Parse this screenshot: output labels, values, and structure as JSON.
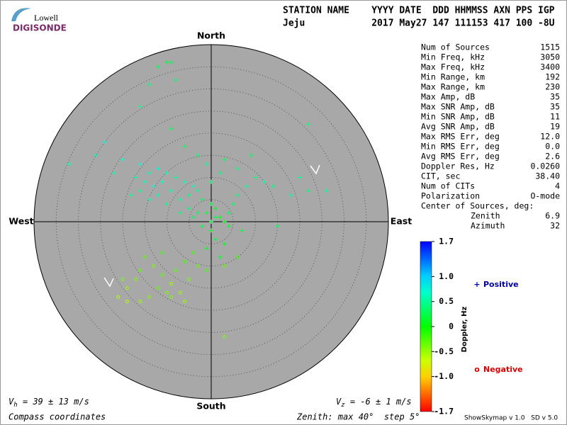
{
  "header": {
    "logo_top": "Lowell",
    "logo_bottom": "DIGISONDE",
    "labels": "STATION NAME    YYYY DATE  DDD HHMMSS AXN PPS IGP",
    "values": "Jeju            2017 May27 147 111153 417 100 -8U"
  },
  "chart_data": {
    "type": "skymap",
    "directions": {
      "north": "North",
      "south": "South",
      "east": "East",
      "west": "West"
    },
    "rlim": [
      0,
      40
    ],
    "rticks": [
      5,
      10,
      15,
      20,
      25,
      30,
      35
    ],
    "series": [
      {
        "name": "Positive",
        "marker": "+",
        "label_color": "#0000aa",
        "x": [
          -3,
          -2,
          0,
          1,
          -4,
          -6,
          -8,
          -10,
          -12,
          -14,
          -16,
          -5,
          -7,
          -1,
          2,
          3,
          4,
          5,
          6,
          8,
          10,
          12,
          -9,
          -11,
          -13,
          -15,
          -17,
          -20,
          -24,
          -26,
          -22,
          -18,
          0,
          2,
          -1,
          -3,
          -6,
          -9,
          -8,
          -9,
          -10,
          -12,
          -14,
          -16,
          3,
          6,
          9,
          14,
          18,
          20,
          22,
          26,
          -4,
          -2,
          0,
          1,
          -1,
          2,
          0,
          1,
          4,
          7,
          3,
          -3,
          -5,
          -7,
          -10,
          -12,
          -14,
          -16,
          15,
          22,
          -32
        ],
        "y": [
          7,
          5,
          4,
          3,
          8,
          9,
          10,
          11,
          12,
          11,
          13,
          6,
          5,
          2,
          1,
          0,
          2,
          4,
          6,
          8,
          10,
          9,
          7,
          9,
          8,
          9,
          10,
          14,
          18,
          15,
          11,
          6,
          9,
          11,
          13,
          15,
          17,
          21,
          32,
          36,
          36,
          35,
          31,
          26,
          14,
          12,
          15,
          8,
          6,
          10,
          7,
          7,
          1,
          -1,
          -2,
          -4,
          -6,
          -8,
          0,
          1,
          -1,
          -2,
          -5,
          2,
          3,
          2,
          4,
          6,
          5,
          7,
          -1,
          22,
          13
        ],
        "doppler": [
          0.5,
          0.3,
          0.2,
          0.1,
          0.6,
          0.6,
          0.5,
          0.6,
          0.7,
          0.6,
          0.7,
          0.4,
          0.5,
          0.2,
          0.1,
          0.1,
          0.3,
          0.3,
          0.4,
          0.5,
          0.4,
          0.5,
          0.6,
          0.6,
          0.7,
          0.6,
          0.6,
          0.7,
          0.7,
          0.6,
          0.6,
          0.5,
          0.4,
          0.4,
          0.5,
          0.4,
          0.3,
          0.3,
          0.4,
          0.3,
          0.2,
          0.3,
          0.4,
          0.5,
          0.3,
          0.4,
          0.3,
          0.4,
          0.5,
          0.5,
          0.4,
          0.5,
          0.3,
          0.2,
          0.1,
          0.2,
          0.1,
          0.1,
          0.2,
          0.2,
          0.1,
          0.2,
          0.1,
          0.3,
          0.4,
          0.4,
          0.5,
          0.6,
          0.6,
          0.5,
          0.3,
          0.4,
          0.6
        ]
      },
      {
        "name": "Negative",
        "marker": "o",
        "label_color": "#dd0000",
        "x": [
          -15,
          -13,
          -11,
          -9,
          -8,
          -6,
          -5,
          -7,
          -10,
          -12,
          -17,
          -19,
          -21,
          -20,
          -16,
          -14,
          -4,
          -3,
          -1,
          3,
          6,
          -6,
          -9,
          -16,
          -19,
          -11,
          3
        ],
        "y": [
          -8,
          -10,
          -12,
          -14,
          -11,
          -9,
          -13,
          -16,
          -16,
          -15,
          -13,
          -15,
          -17,
          -13,
          -18,
          -17,
          -7,
          -10,
          -11,
          -10,
          -8,
          -18,
          -17,
          -11,
          -18,
          -7,
          -26
        ],
        "doppler": [
          -0.3,
          -0.4,
          -0.3,
          -0.5,
          -0.3,
          -0.2,
          -0.4,
          -0.5,
          -0.4,
          -0.3,
          -0.4,
          -0.5,
          -0.6,
          -0.4,
          -0.5,
          -0.4,
          -0.2,
          -0.3,
          -0.2,
          -0.3,
          -0.2,
          -0.5,
          -0.4,
          -0.3,
          -0.6,
          -0.2,
          -0.4
        ]
      }
    ],
    "colorbar": {
      "label": "Doppler, Hz",
      "clim": [
        -1.7,
        1.7
      ],
      "ticks": [
        {
          "value": 1.7,
          "label": "1.7"
        },
        {
          "value": 1,
          "label": "1.0"
        },
        {
          "value": 0.5,
          "label": "0.5"
        },
        0,
        {
          "value": -0.5,
          "label": "-0.5"
        },
        {
          "value": -1,
          "label": "-1.0"
        },
        {
          "value": -1.7,
          "label": "-1.7"
        }
      ]
    }
  },
  "stats": {
    "rows": [
      [
        "Num of Sources",
        "1515"
      ],
      [
        "Min Freq, kHz",
        "3050"
      ],
      [
        "Max Freq, kHz",
        "3400"
      ],
      [
        "Min Range, km",
        "192"
      ],
      [
        "Max Range, km",
        "230"
      ],
      [
        "Max Amp, dB",
        "35"
      ],
      [
        "Max SNR Amp, dB",
        "35"
      ],
      [
        "Min SNR Amp, dB",
        "11"
      ],
      [
        "Avg SNR Amp, dB",
        "19"
      ],
      [
        "Max RMS Err, deg",
        "12.0"
      ],
      [
        "Min RMS Err, deg",
        "0.0"
      ],
      [
        "Avg RMS Err, deg",
        "2.6"
      ],
      [
        "Doppler Res, Hz",
        "0.0260"
      ],
      [
        "CIT, sec",
        "38.40"
      ],
      [
        "Num of CITs",
        "4"
      ],
      [
        "Polarization",
        "O-mode"
      ]
    ],
    "center_title": "Center of Sources, deg:",
    "center_rows": [
      [
        "Zenith",
        "6.9"
      ],
      [
        "Azimuth",
        "32"
      ]
    ]
  },
  "footer": {
    "vh": {
      "symbol": "V",
      "subscript": "h",
      "text": " = 39 ± 13 m/s"
    },
    "vz": {
      "symbol": "V",
      "subscript": "z",
      "text": " = -6 ± 1 m/s"
    },
    "coordinates": "Compass coordinates",
    "zenith": "Zenith: max 40°  step 5°",
    "version": "ShowSkymap v 1.0   SD v 5.0"
  }
}
